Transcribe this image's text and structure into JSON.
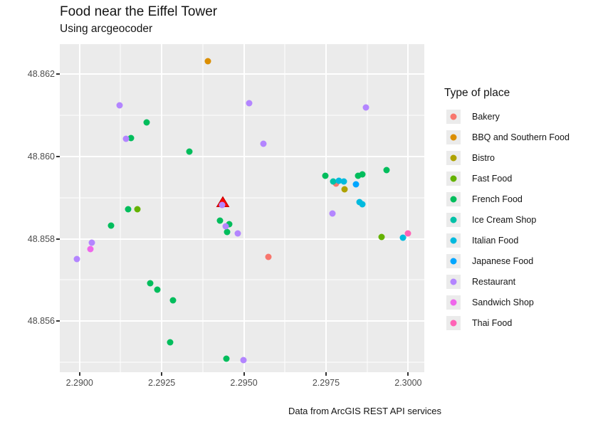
{
  "title": "Food near the Eiffel Tower",
  "subtitle": "Using arcgeocoder",
  "caption": "Data from ArcGIS REST API services",
  "legend": {
    "title": "Type of place",
    "items": [
      {
        "label": "Bakery",
        "color": "#F8766D"
      },
      {
        "label": "BBQ and Southern Food",
        "color": "#DB8E00"
      },
      {
        "label": "Bistro",
        "color": "#AEA200"
      },
      {
        "label": "Fast Food",
        "color": "#64B200"
      },
      {
        "label": "French Food",
        "color": "#00BD5C"
      },
      {
        "label": "Ice Cream Shop",
        "color": "#00C1A7"
      },
      {
        "label": "Italian Food",
        "color": "#00BADE"
      },
      {
        "label": "Japanese Food",
        "color": "#00A6FF"
      },
      {
        "label": "Restaurant",
        "color": "#B385FF"
      },
      {
        "label": "Sandwich Shop",
        "color": "#EF67EB"
      },
      {
        "label": "Thai Food",
        "color": "#FF63B6"
      }
    ]
  },
  "colors": {
    "panel_bg": "#EBEBEB",
    "grid": "#FFFFFF",
    "axis_text": "#4D4D4D",
    "marker_fill": "#FF0000",
    "marker_stroke": "#C00000"
  },
  "chart_data": {
    "type": "scatter",
    "title": "Food near the Eiffel Tower",
    "subtitle": "Using arcgeocoder",
    "caption": "Data from ArcGIS REST API services",
    "xlabel": "",
    "ylabel": "",
    "legend_position": "right",
    "grid": "on",
    "x_domain": [
      2.2894,
      2.30049
    ],
    "y_domain": [
      48.85476,
      48.86273
    ],
    "x_ticks": [
      2.29,
      2.2925,
      2.295,
      2.2975,
      2.3
    ],
    "x_tick_labels": [
      "2.2900",
      "2.2925",
      "2.2950",
      "2.2975",
      "2.3000"
    ],
    "x_minor_ticks": [
      2.29125,
      2.29375,
      2.29625,
      2.29875
    ],
    "y_ticks": [
      48.856,
      48.858,
      48.86,
      48.862
    ],
    "y_tick_labels": [
      "48.856",
      "48.858",
      "48.860",
      "48.862"
    ],
    "y_minor_ticks": [
      48.855,
      48.857,
      48.859,
      48.861
    ],
    "marker": {
      "name": "eiffel-tower",
      "x": 2.29435,
      "y": 48.85885
    },
    "series": [
      {
        "name": "Bakery",
        "color": "#F8766D",
        "points": [
          [
            2.2978,
            48.85935
          ],
          [
            2.29575,
            48.85756
          ]
        ]
      },
      {
        "name": "BBQ and Southern Food",
        "color": "#DB8E00",
        "points": [
          [
            2.29391,
            48.86232
          ]
        ]
      },
      {
        "name": "Bistro",
        "color": "#AEA200",
        "points": [
          [
            2.29807,
            48.8592
          ]
        ]
      },
      {
        "name": "Fast Food",
        "color": "#64B200",
        "points": [
          [
            2.29176,
            48.85872
          ],
          [
            2.2992,
            48.85804
          ]
        ]
      },
      {
        "name": "French Food",
        "color": "#00BD5C",
        "points": [
          [
            2.29204,
            48.86082
          ],
          [
            2.29157,
            48.86044
          ],
          [
            2.29334,
            48.86012
          ],
          [
            2.29934,
            48.85967
          ],
          [
            2.29748,
            48.85953
          ],
          [
            2.29848,
            48.85954
          ],
          [
            2.2986,
            48.85956
          ],
          [
            2.29148,
            48.85872
          ],
          [
            2.29427,
            48.85844
          ],
          [
            2.29456,
            48.85835
          ],
          [
            2.29449,
            48.85816
          ],
          [
            2.29096,
            48.85832
          ],
          [
            2.29215,
            48.85692
          ],
          [
            2.29237,
            48.85676
          ],
          [
            2.29284,
            48.8565
          ],
          [
            2.29276,
            48.85548
          ],
          [
            2.29447,
            48.85509
          ]
        ]
      },
      {
        "name": "Ice Cream Shop",
        "color": "#00C1A7",
        "points": [
          [
            2.29772,
            48.85939
          ]
        ]
      },
      {
        "name": "Italian Food",
        "color": "#00BADE",
        "points": [
          [
            2.29789,
            48.85941
          ],
          [
            2.29804,
            48.8594
          ],
          [
            2.29852,
            48.8589
          ],
          [
            2.29861,
            48.85884
          ],
          [
            2.29984,
            48.85802
          ]
        ]
      },
      {
        "name": "Japanese Food",
        "color": "#00A6FF",
        "points": [
          [
            2.2984,
            48.85932
          ]
        ]
      },
      {
        "name": "Restaurant",
        "color": "#B385FF",
        "points": [
          [
            2.29122,
            48.86124
          ],
          [
            2.29516,
            48.86129
          ],
          [
            2.29872,
            48.86119
          ],
          [
            2.29141,
            48.86043
          ],
          [
            2.2956,
            48.86031
          ],
          [
            2.2977,
            48.85861
          ],
          [
            2.29433,
            48.85883
          ],
          [
            2.29445,
            48.8583
          ],
          [
            2.29482,
            48.85813
          ],
          [
            2.29037,
            48.8579
          ],
          [
            2.28992,
            48.85751
          ],
          [
            2.29499,
            48.85505
          ]
        ]
      },
      {
        "name": "Sandwich Shop",
        "color": "#EF67EB",
        "points": [
          [
            2.29034,
            48.85775
          ]
        ]
      },
      {
        "name": "Thai Food",
        "color": "#FF63B6",
        "points": [
          [
            2.3,
            48.85813
          ]
        ]
      }
    ]
  }
}
